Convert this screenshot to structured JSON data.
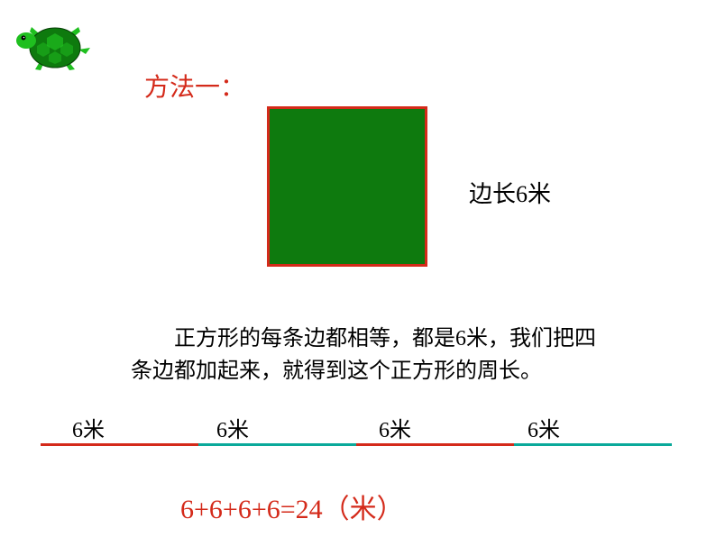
{
  "colors": {
    "red": "#d42a1a",
    "darkRed": "#c01010",
    "green": "#0e7a0e",
    "brightGreen": "#1fbf1f",
    "teal": "#0aa99a",
    "black": "#000000"
  },
  "turtle": {
    "shellColor": "#0e7a0e",
    "shellHighlight": "#1fbf1f",
    "bodyColor": "#1fbf1f",
    "eyeColor": "#000000"
  },
  "methodTitle": {
    "text": "方法一：",
    "color": "#d42a1a",
    "fontsize": 28
  },
  "square": {
    "fillColor": "#0e7a0e",
    "borderColor": "#d42a1a",
    "borderWidth": 3,
    "sideLabel": "边长6米",
    "sideLabelColor": "#000000",
    "sideLabelFontsize": 26
  },
  "explanation": {
    "text": "正方形的每条边都相等，都是6米，我们把四条边都加起来，就得到这个正方形的周长。",
    "color": "#000000",
    "fontsize": 24
  },
  "segments": {
    "labels": [
      "6米",
      "6米",
      "6米",
      "6米"
    ],
    "labelColor": "#000000",
    "labelFontsize": 24,
    "colors": [
      "#d42a1a",
      "#0aa99a",
      "#d42a1a",
      "#0aa99a"
    ],
    "width": 175,
    "height": 3
  },
  "formula": {
    "text": "6+6+6+6=24（米）",
    "color": "#d42a1a",
    "fontsize": 30
  }
}
